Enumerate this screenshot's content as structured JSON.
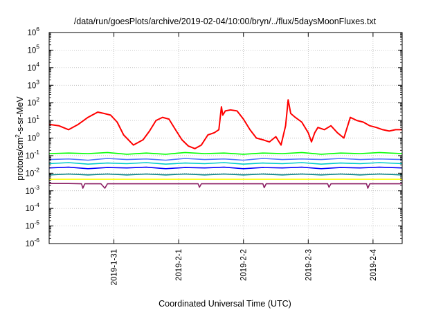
{
  "chart_data": {
    "type": "line",
    "title": "/data/run/goesPlots/archive/2019-02-04/10:00/bryn/../flux/5daysMoonFluxes.txt",
    "xlabel": "Coordinated Universal Time (UTC)",
    "ylabel": {
      "base": "protons/cm",
      "exp": "2",
      "rest": "-s-sr-MeV"
    },
    "yscale": "log",
    "ylim": [
      1e-06,
      1000000.0
    ],
    "xlim": [
      0.0,
      5.45
    ],
    "x_units": "days since 2019-01-30 00:00 UTC",
    "grid": true,
    "legend": "none",
    "yticks": [
      {
        "value": 1e-06,
        "mant": "10",
        "exp": "-6"
      },
      {
        "value": 1e-05,
        "mant": "10",
        "exp": "-5"
      },
      {
        "value": 0.0001,
        "mant": "10",
        "exp": "-4"
      },
      {
        "value": 0.001,
        "mant": "10",
        "exp": "-3"
      },
      {
        "value": 0.01,
        "mant": "10",
        "exp": "-2"
      },
      {
        "value": 0.1,
        "mant": "10",
        "exp": "-1"
      },
      {
        "value": 1,
        "mant": "10",
        "exp": "0"
      },
      {
        "value": 10,
        "mant": "10",
        "exp": "1"
      },
      {
        "value": 100,
        "mant": "10",
        "exp": "2"
      },
      {
        "value": 1000,
        "mant": "10",
        "exp": "3"
      },
      {
        "value": 10000,
        "mant": "10",
        "exp": "4"
      },
      {
        "value": 100000,
        "mant": "10",
        "exp": "5"
      },
      {
        "value": 1000000,
        "mant": "10",
        "exp": "6"
      }
    ],
    "xticks": [
      {
        "label": "2019-1-31",
        "value": 1.0
      },
      {
        "label": "2019-2-1",
        "value": 2.0
      },
      {
        "label": "2019-2-2",
        "value": 3.0
      },
      {
        "label": "2019-2-3",
        "value": 4.0
      },
      {
        "label": "2019-2-4",
        "value": 5.0
      }
    ],
    "series": [
      {
        "color": "#ff0000",
        "x": [
          0.0,
          0.15,
          0.3,
          0.45,
          0.6,
          0.75,
          0.85,
          0.95,
          1.05,
          1.15,
          1.3,
          1.45,
          1.55,
          1.65,
          1.75,
          1.85,
          1.95,
          2.05,
          2.15,
          2.25,
          2.35,
          2.45,
          2.55,
          2.62,
          2.66,
          2.68,
          2.72,
          2.8,
          2.9,
          3.0,
          3.1,
          3.2,
          3.3,
          3.4,
          3.5,
          3.58,
          3.65,
          3.69,
          3.73,
          3.8,
          3.9,
          4.0,
          4.05,
          4.1,
          4.15,
          4.25,
          4.35,
          4.45,
          4.55,
          4.65,
          4.75,
          4.85,
          4.95,
          5.05,
          5.15,
          5.25,
          5.35,
          5.45
        ],
        "y": [
          6,
          5,
          3,
          6,
          15,
          30,
          25,
          20,
          8,
          1.5,
          0.4,
          0.8,
          2.5,
          10,
          15,
          12,
          3,
          0.8,
          0.35,
          0.25,
          0.4,
          1.5,
          2,
          3,
          60,
          20,
          35,
          40,
          35,
          12,
          3,
          1,
          0.8,
          0.6,
          1.2,
          0.4,
          5,
          150,
          25,
          15,
          8,
          2,
          0.6,
          2,
          4,
          3,
          5,
          2,
          1,
          15,
          10,
          8,
          5,
          4,
          3,
          2.5,
          3,
          3
        ]
      },
      {
        "color": "#00ff00",
        "x": [
          0.0,
          0.3,
          0.6,
          0.9,
          1.2,
          1.5,
          1.8,
          2.1,
          2.4,
          2.7,
          3.0,
          3.3,
          3.6,
          3.9,
          4.2,
          4.5,
          4.8,
          5.1,
          5.45
        ],
        "y": [
          0.13,
          0.14,
          0.13,
          0.15,
          0.12,
          0.14,
          0.12,
          0.15,
          0.13,
          0.14,
          0.12,
          0.14,
          0.13,
          0.15,
          0.12,
          0.14,
          0.13,
          0.15,
          0.13
        ]
      },
      {
        "color": "#5577ff",
        "x": [
          0.0,
          0.3,
          0.6,
          0.9,
          1.2,
          1.5,
          1.8,
          2.1,
          2.4,
          2.7,
          3.0,
          3.3,
          3.6,
          3.9,
          4.2,
          4.5,
          4.8,
          5.1,
          5.45
        ],
        "y": [
          0.06,
          0.065,
          0.055,
          0.07,
          0.06,
          0.065,
          0.055,
          0.07,
          0.06,
          0.065,
          0.055,
          0.07,
          0.06,
          0.065,
          0.06,
          0.07,
          0.06,
          0.065,
          0.06
        ]
      },
      {
        "color": "#00cccc",
        "x": [
          0.0,
          0.3,
          0.6,
          0.9,
          1.2,
          1.5,
          1.8,
          2.1,
          2.4,
          2.7,
          3.0,
          3.3,
          3.6,
          3.9,
          4.2,
          4.5,
          4.8,
          5.1,
          5.45
        ],
        "y": [
          0.035,
          0.04,
          0.033,
          0.038,
          0.035,
          0.04,
          0.033,
          0.038,
          0.035,
          0.04,
          0.033,
          0.038,
          0.035,
          0.04,
          0.033,
          0.038,
          0.035,
          0.04,
          0.035
        ]
      },
      {
        "color": "#0000ff",
        "x": [
          0.0,
          0.3,
          0.6,
          0.9,
          1.2,
          1.5,
          1.8,
          2.1,
          2.4,
          2.7,
          3.0,
          3.3,
          3.6,
          3.9,
          4.2,
          4.5,
          4.8,
          5.1,
          5.45
        ],
        "y": [
          0.02,
          0.022,
          0.018,
          0.021,
          0.02,
          0.022,
          0.018,
          0.021,
          0.02,
          0.022,
          0.018,
          0.021,
          0.02,
          0.022,
          0.018,
          0.021,
          0.02,
          0.022,
          0.02
        ]
      },
      {
        "color": "#008080",
        "x": [
          0.0,
          0.3,
          0.6,
          0.9,
          1.2,
          1.5,
          1.8,
          2.1,
          2.4,
          2.7,
          3.0,
          3.3,
          3.6,
          3.9,
          4.2,
          4.5,
          4.8,
          5.1,
          5.45
        ],
        "y": [
          0.008,
          0.009,
          0.008,
          0.009,
          0.008,
          0.009,
          0.008,
          0.009,
          0.008,
          0.009,
          0.008,
          0.009,
          0.008,
          0.009,
          0.008,
          0.009,
          0.008,
          0.009,
          0.008
        ]
      },
      {
        "color": "#ffff00",
        "x": [
          0.0,
          0.5,
          1.0,
          1.5,
          2.0,
          2.5,
          3.0,
          3.5,
          4.0,
          4.5,
          5.0,
          5.45
        ],
        "y": [
          0.0045,
          0.0045,
          0.0045,
          0.0045,
          0.0045,
          0.0045,
          0.0045,
          0.0045,
          0.0045,
          0.0045,
          0.0045,
          0.0045
        ]
      },
      {
        "color": "#8b1c62",
        "x": [
          0.0,
          0.3,
          0.5,
          0.52,
          0.55,
          0.8,
          0.86,
          0.9,
          1.2,
          1.6,
          2.1,
          2.3,
          2.32,
          2.35,
          2.7,
          3.3,
          3.32,
          3.35,
          3.8,
          4.3,
          4.32,
          4.35,
          4.8,
          4.9,
          4.92,
          4.95,
          5.2,
          5.45
        ],
        "y": [
          0.0026,
          0.0026,
          0.0025,
          0.0014,
          0.0025,
          0.0025,
          0.0014,
          0.0025,
          0.0025,
          0.0025,
          0.0025,
          0.0025,
          0.0016,
          0.0025,
          0.0025,
          0.0025,
          0.0015,
          0.0025,
          0.0025,
          0.0025,
          0.0016,
          0.0025,
          0.0025,
          0.0025,
          0.0014,
          0.0025,
          0.0025,
          0.0025
        ]
      }
    ]
  }
}
